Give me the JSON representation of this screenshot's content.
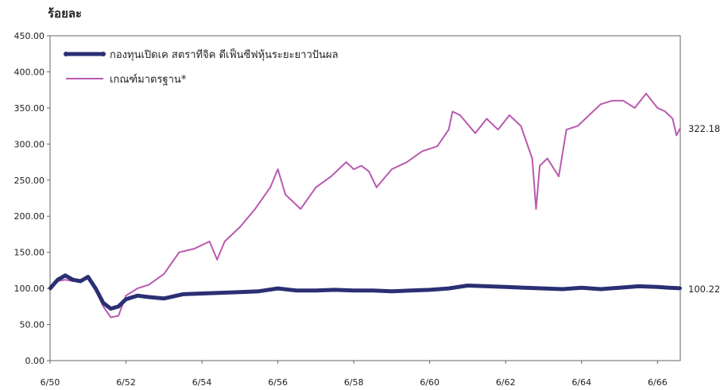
{
  "chart_data": {
    "type": "line",
    "ylabel": "ร้อยละ",
    "ylim": [
      0,
      450
    ],
    "y_ticks": [
      "0.00",
      "50.00",
      "100.00",
      "150.00",
      "200.00",
      "250.00",
      "300.00",
      "350.00",
      "400.00",
      "450.00"
    ],
    "y_tick_values": [
      0,
      50,
      100,
      150,
      200,
      250,
      300,
      350,
      400,
      450
    ],
    "xlim": [
      2550.0,
      2566.6
    ],
    "x_ticks": [
      "6/50",
      "6/52",
      "6/54",
      "6/56",
      "6/58",
      "6/60",
      "6/62",
      "6/64",
      "6/66"
    ],
    "x_tick_values": [
      2550,
      2552,
      2554,
      2556,
      2558,
      2560,
      2562,
      2564,
      2566
    ],
    "grid": false,
    "legend_position": "top-left",
    "series": [
      {
        "name": "กองทุนเปิดเค สตราทีจิค ดีเฟ็นซีฟหุ้นระยะยาวปันผล",
        "color": "#2b2f73",
        "end_label": "100.22",
        "x": [
          2550.0,
          2550.2,
          2550.4,
          2550.6,
          2550.8,
          2551.0,
          2551.2,
          2551.4,
          2551.6,
          2551.8,
          2552.0,
          2552.3,
          2552.6,
          2553.0,
          2553.5,
          2554.0,
          2554.5,
          2555.0,
          2555.5,
          2556.0,
          2556.5,
          2557.0,
          2557.5,
          2558.0,
          2558.5,
          2559.0,
          2559.5,
          2560.0,
          2560.5,
          2561.0,
          2561.5,
          2562.0,
          2562.5,
          2563.0,
          2563.5,
          2564.0,
          2564.5,
          2565.0,
          2565.5,
          2566.0,
          2566.3,
          2566.6
        ],
        "y": [
          100,
          112,
          118,
          112,
          110,
          116,
          100,
          80,
          72,
          75,
          85,
          90,
          88,
          86,
          92,
          93,
          94,
          95,
          96,
          100,
          97,
          97,
          98,
          97,
          97,
          96,
          97,
          98,
          100,
          104,
          103,
          102,
          101,
          100,
          99,
          101,
          99,
          101,
          103,
          102,
          101,
          100.22
        ]
      },
      {
        "name": "เกณฑ์มาตรฐาน*",
        "color": "#b95ab0",
        "end_label": "322.18",
        "x": [
          2550.0,
          2550.2,
          2550.4,
          2550.6,
          2550.8,
          2551.0,
          2551.2,
          2551.4,
          2551.6,
          2551.8,
          2552.0,
          2552.3,
          2552.6,
          2553.0,
          2553.4,
          2553.8,
          2554.2,
          2554.4,
          2554.6,
          2555.0,
          2555.4,
          2555.8,
          2556.0,
          2556.2,
          2556.6,
          2557.0,
          2557.4,
          2557.8,
          2558.0,
          2558.2,
          2558.4,
          2558.6,
          2559.0,
          2559.4,
          2559.8,
          2560.2,
          2560.5,
          2560.6,
          2560.8,
          2561.2,
          2561.5,
          2561.8,
          2562.1,
          2562.4,
          2562.7,
          2562.8,
          2562.9,
          2563.1,
          2563.4,
          2563.6,
          2563.9,
          2564.2,
          2564.5,
          2564.8,
          2565.1,
          2565.4,
          2565.7,
          2566.0,
          2566.2,
          2566.4,
          2566.5,
          2566.6
        ],
        "y": [
          97,
          110,
          112,
          110,
          112,
          115,
          98,
          75,
          60,
          62,
          90,
          100,
          105,
          120,
          150,
          155,
          165,
          140,
          165,
          185,
          210,
          240,
          265,
          230,
          210,
          240,
          255,
          275,
          265,
          270,
          262,
          240,
          265,
          275,
          290,
          297,
          320,
          345,
          340,
          315,
          335,
          320,
          340,
          325,
          280,
          210,
          270,
          280,
          255,
          320,
          325,
          340,
          355,
          360,
          360,
          350,
          370,
          350,
          345,
          335,
          312,
          322.18
        ]
      }
    ]
  }
}
